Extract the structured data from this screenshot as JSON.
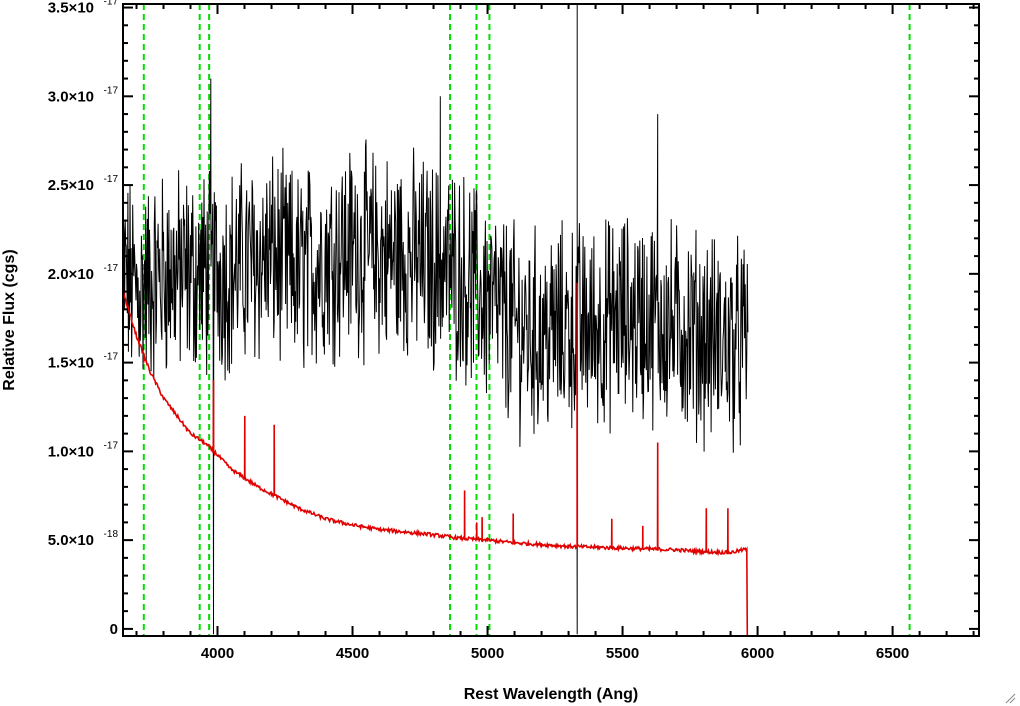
{
  "chart_data": {
    "type": "line",
    "xlabel": "Rest Wavelength (Ang)",
    "ylabel": "Relative Flux (cgs)",
    "xlim": [
      3650,
      6820
    ],
    "ylim": [
      -4e-19,
      3.52e-17
    ],
    "x_ticks": [
      {
        "value": 4000,
        "label": "4000"
      },
      {
        "value": 4500,
        "label": "4500"
      },
      {
        "value": 5000,
        "label": "5000"
      },
      {
        "value": 5500,
        "label": "5500"
      },
      {
        "value": 6000,
        "label": "6000"
      },
      {
        "value": 6500,
        "label": "6500"
      }
    ],
    "y_ticks": [
      {
        "value": 0,
        "mantissa": "0",
        "exponent": ""
      },
      {
        "value": 5e-18,
        "mantissa": "5.0×10",
        "exponent": "-18"
      },
      {
        "value": 1e-17,
        "mantissa": "1.0×10",
        "exponent": "-17"
      },
      {
        "value": 1.5e-17,
        "mantissa": "1.5×10",
        "exponent": "-17"
      },
      {
        "value": 2e-17,
        "mantissa": "2.0×10",
        "exponent": "-17"
      },
      {
        "value": 2.5e-17,
        "mantissa": "2.5×10",
        "exponent": "-17"
      },
      {
        "value": 3e-17,
        "mantissa": "3.0×10",
        "exponent": "-17"
      },
      {
        "value": 3.5e-17,
        "mantissa": "3.5×10",
        "exponent": "-17"
      }
    ],
    "series": [
      {
        "id": "observed",
        "color": "#000000",
        "style": "noisy",
        "x": [
          3650,
          3700,
          3750,
          3800,
          3900,
          4000,
          4100,
          4200,
          4300,
          4400,
          4500,
          4600,
          4700,
          4800,
          4900,
          5000,
          5100,
          5200,
          5300,
          5400,
          5500,
          5600,
          5700,
          5800,
          5900,
          5965
        ],
        "y": [
          2e-17,
          1.9e-17,
          1.95e-17,
          2e-17,
          2e-17,
          2e-17,
          2.05e-17,
          2.1e-17,
          2e-17,
          2.1e-17,
          2.15e-17,
          2.1e-17,
          2.1e-17,
          2.05e-17,
          2e-17,
          1.85e-17,
          1.7e-17,
          1.65e-17,
          1.7e-17,
          1.7e-17,
          1.75e-17,
          1.75e-17,
          1.7e-17,
          1.65e-17,
          1.6e-17,
          1.6e-17
        ],
        "noise_amplitude": 5e-18,
        "features": [
          {
            "x": 3985,
            "y": -3e-19,
            "width": 4
          },
          {
            "x": 3975,
            "y": 3.1e-17,
            "width": 3
          },
          {
            "x": 4825,
            "y": 3e-17,
            "width": 3
          },
          {
            "x": 5332,
            "y": 3.52e-17,
            "width": 1
          },
          {
            "x": 5332,
            "y": -3e-19,
            "width": 1
          },
          {
            "x": 5630,
            "y": 2.9e-17,
            "width": 3
          },
          {
            "x": 5965,
            "y": 0.0,
            "width": 1
          }
        ]
      },
      {
        "id": "model",
        "color": "#e00000",
        "style": "smooth",
        "x": [
          3650,
          3700,
          3750,
          3800,
          3850,
          3900,
          3950,
          4000,
          4050,
          4100,
          4150,
          4200,
          4300,
          4400,
          4500,
          4600,
          4700,
          4800,
          4900,
          5000,
          5100,
          5200,
          5300,
          5400,
          5500,
          5600,
          5700,
          5800,
          5900,
          5960,
          5962,
          6820
        ],
        "y": [
          1.9e-17,
          1.65e-17,
          1.45e-17,
          1.3e-17,
          1.2e-17,
          1.1e-17,
          1.05e-17,
          9.8e-18,
          9e-18,
          8.5e-18,
          8e-18,
          7.6e-18,
          6.8e-18,
          6.2e-18,
          5.85e-18,
          5.6e-18,
          5.45e-18,
          5.3e-18,
          5.1e-18,
          5e-18,
          4.85e-18,
          4.75e-18,
          4.65e-18,
          4.6e-18,
          4.55e-18,
          4.5e-18,
          4.45e-18,
          4.35e-18,
          4.3e-18,
          4.5e-18,
          -4e-19,
          -4e-19
        ],
        "emission_lines": [
          {
            "x": 3727,
            "y": 1.5e-17
          },
          {
            "x": 3985,
            "y": 1.4e-17
          },
          {
            "x": 4101,
            "y": 1.2e-17
          },
          {
            "x": 4210,
            "y": 1.15e-17
          },
          {
            "x": 4915,
            "y": 7.8e-18
          },
          {
            "x": 4960,
            "y": 6e-18
          },
          {
            "x": 4980,
            "y": 6.3e-18
          },
          {
            "x": 5095,
            "y": 6.5e-18
          },
          {
            "x": 5332,
            "y": 1.95e-17
          },
          {
            "x": 5460,
            "y": 6.2e-18
          },
          {
            "x": 5575,
            "y": 5.8e-18
          },
          {
            "x": 5630,
            "y": 1.05e-17
          },
          {
            "x": 5810,
            "y": 6.8e-18
          },
          {
            "x": 5890,
            "y": 6.8e-18
          }
        ]
      }
    ],
    "reference_lines": {
      "color": "#00e000",
      "style": "dashed",
      "x": [
        3727,
        3934,
        3969,
        4861,
        4959,
        5007,
        6563
      ]
    }
  }
}
